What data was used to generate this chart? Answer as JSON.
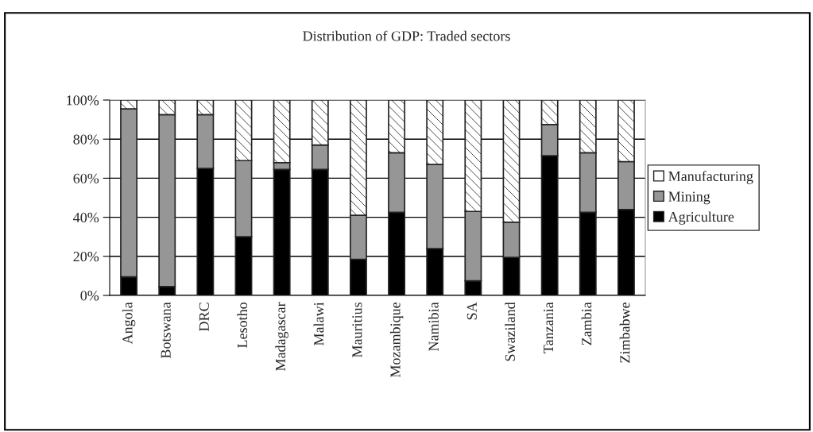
{
  "chart_data": {
    "type": "bar",
    "title": "Distribution of GDP: Traded sectors",
    "stacked": true,
    "categories": [
      "Angola",
      "Botswana",
      "DRC",
      "Lesotho",
      "Madagascar",
      "Malawi",
      "Mauritius",
      "Mozambique",
      "Namibia",
      "SA",
      "Swaziland",
      "Tanzania",
      "Zambia",
      "Zimbabwe"
    ],
    "series": [
      {
        "name": "Agriculture",
        "color": "#000000",
        "values": [
          9.5,
          4.5,
          65,
          30,
          64.5,
          64.5,
          18.5,
          42.5,
          24,
          7.5,
          19.5,
          71.5,
          42.5,
          44
        ]
      },
      {
        "name": "Mining",
        "color": "#969696",
        "values": [
          86,
          88,
          27.5,
          39,
          3.5,
          12.5,
          22.5,
          30.5,
          43,
          35.5,
          18,
          16,
          30.5,
          24.5
        ]
      },
      {
        "name": "Manufacturing",
        "color": "#ffffff",
        "values": [
          4.5,
          7.5,
          7.5,
          31,
          32,
          23,
          59,
          27,
          33,
          57,
          62.5,
          12.5,
          27,
          31.5
        ]
      }
    ],
    "ylim": [
      0,
      100
    ],
    "yticks": [
      {
        "value": 0,
        "label": "0%"
      },
      {
        "value": 20,
        "label": "20%"
      },
      {
        "value": 40,
        "label": "40%"
      },
      {
        "value": 60,
        "label": "60%"
      },
      {
        "value": 80,
        "label": "80%"
      },
      {
        "value": 100,
        "label": "100%"
      }
    ],
    "grid": "y",
    "legend": "right"
  }
}
